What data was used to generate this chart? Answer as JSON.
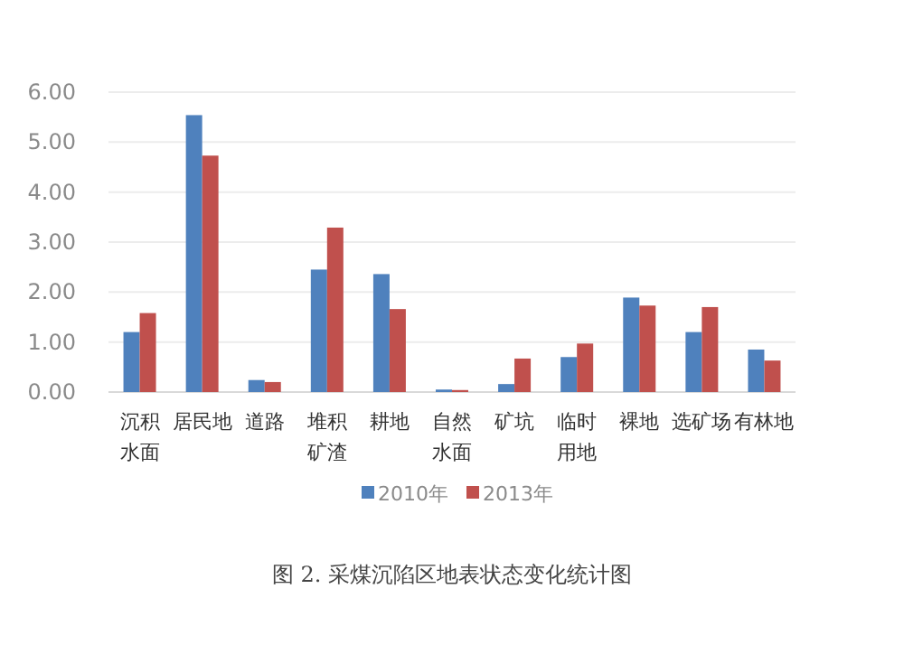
{
  "chart_data": {
    "type": "bar",
    "categories": [
      "沉积水面",
      "居民地",
      "道路",
      "堆积矿渣",
      "耕地",
      "自然水面",
      "矿坑",
      "临时用地",
      "裸地",
      "选矿场",
      "有林地"
    ],
    "series": [
      {
        "name": "2010年",
        "color": "#4f81bd",
        "values": [
          1.2,
          5.54,
          0.24,
          2.45,
          2.36,
          0.05,
          0.16,
          0.7,
          1.89,
          1.2,
          0.85
        ]
      },
      {
        "name": "2013年",
        "color": "#c0504d",
        "values": [
          1.58,
          4.73,
          0.2,
          3.29,
          1.66,
          0.04,
          0.67,
          0.97,
          1.73,
          1.7,
          0.63
        ]
      }
    ],
    "ylim": [
      0,
      6
    ],
    "yticks": [
      {
        "value": 0,
        "label": "0.00"
      },
      {
        "value": 1,
        "label": "1.00"
      },
      {
        "value": 2,
        "label": "2.00"
      },
      {
        "value": 3,
        "label": "3.00"
      },
      {
        "value": 4,
        "label": "4.00"
      },
      {
        "value": 5,
        "label": "5.00"
      },
      {
        "value": 6,
        "label": "6.00"
      }
    ],
    "grid": "y",
    "legend": "bottom",
    "annotations": [
      "图 2.  采煤沉陷区地表状态变化统计图"
    ]
  }
}
